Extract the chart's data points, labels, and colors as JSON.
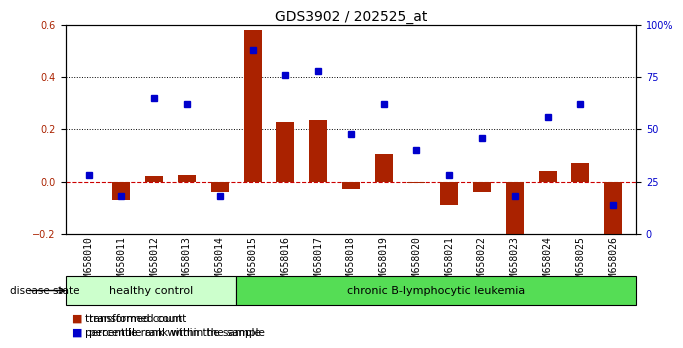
{
  "title": "GDS3902 / 202525_at",
  "samples": [
    "GSM658010",
    "GSM658011",
    "GSM658012",
    "GSM658013",
    "GSM658014",
    "GSM658015",
    "GSM658016",
    "GSM658017",
    "GSM658018",
    "GSM658019",
    "GSM658020",
    "GSM658021",
    "GSM658022",
    "GSM658023",
    "GSM658024",
    "GSM658025",
    "GSM658026"
  ],
  "transformed_count": [
    0.0,
    -0.07,
    0.02,
    0.025,
    -0.04,
    0.58,
    0.23,
    0.235,
    -0.03,
    0.105,
    -0.005,
    -0.09,
    -0.04,
    -0.22,
    0.04,
    0.07,
    -0.21
  ],
  "percentile_rank": [
    28,
    18,
    65,
    62,
    18,
    88,
    76,
    78,
    48,
    62,
    40,
    28,
    46,
    18,
    56,
    62,
    14
  ],
  "bar_color": "#aa2200",
  "dot_color": "#0000cc",
  "dashed_line_color": "#cc0000",
  "bg_plot": "#ffffff",
  "left_ylim": [
    -0.2,
    0.6
  ],
  "right_ylim": [
    0,
    100
  ],
  "left_yticks": [
    -0.2,
    0.0,
    0.2,
    0.4,
    0.6
  ],
  "right_yticks": [
    0,
    25,
    50,
    75,
    100
  ],
  "right_yticklabels": [
    "0",
    "25",
    "50",
    "75",
    "100%"
  ],
  "healthy_control_count": 5,
  "healthy_label": "healthy control",
  "disease_label": "chronic B-lymphocytic leukemia",
  "healthy_color": "#ccffcc",
  "disease_color": "#55dd55",
  "disease_state_label": "disease state",
  "legend_red": "transformed count",
  "legend_blue": "percentile rank within the sample",
  "title_fontsize": 10,
  "tick_fontsize": 7,
  "bar_width": 0.55
}
